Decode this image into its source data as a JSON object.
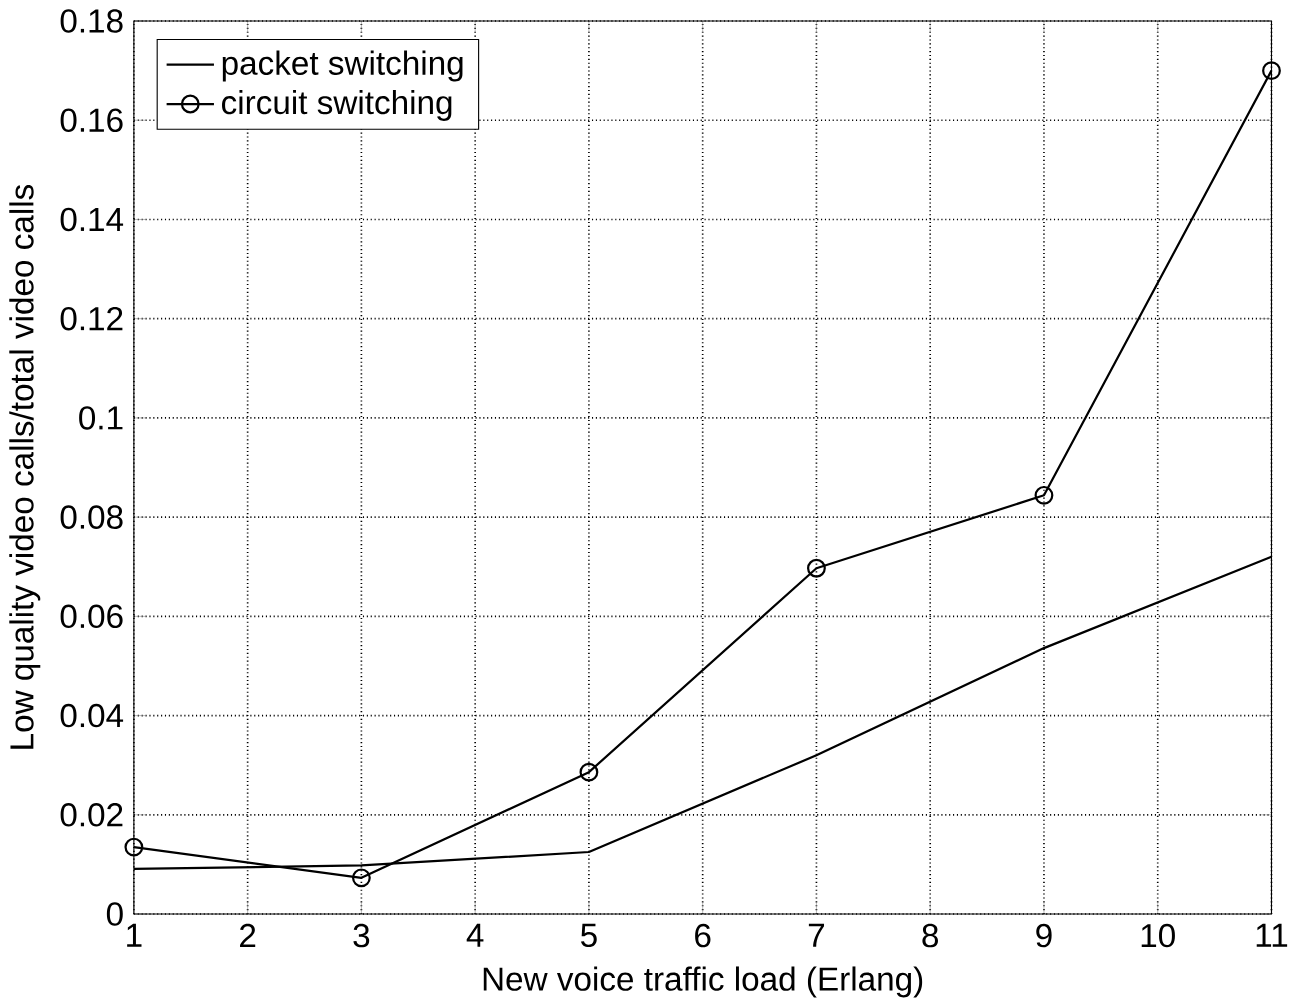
{
  "chart_data": {
    "type": "line",
    "xlabel": "New voice traffic load (Erlang)",
    "ylabel": "Low quality video calls/total video calls",
    "x": [
      1,
      3,
      5,
      7,
      9,
      11
    ],
    "series": [
      {
        "name": "packet switching",
        "color": "#000000",
        "marker": "none",
        "values": [
          0.0091,
          0.0098,
          0.0125,
          0.032,
          0.0536,
          0.072
        ]
      },
      {
        "name": "circuit switching",
        "color": "#000000",
        "marker": "circle",
        "values": [
          0.0135,
          0.0073,
          0.0286,
          0.0697,
          0.0844,
          0.17
        ]
      }
    ],
    "xlim": [
      1,
      11
    ],
    "ylim": [
      0,
      0.18
    ],
    "xticks": [
      1,
      2,
      3,
      4,
      5,
      6,
      7,
      8,
      9,
      10,
      11
    ],
    "yticks": [
      0,
      0.02,
      0.04,
      0.06,
      0.08,
      0.1,
      0.12,
      0.14,
      0.16,
      0.18
    ],
    "grid": true,
    "legend": "top left"
  }
}
